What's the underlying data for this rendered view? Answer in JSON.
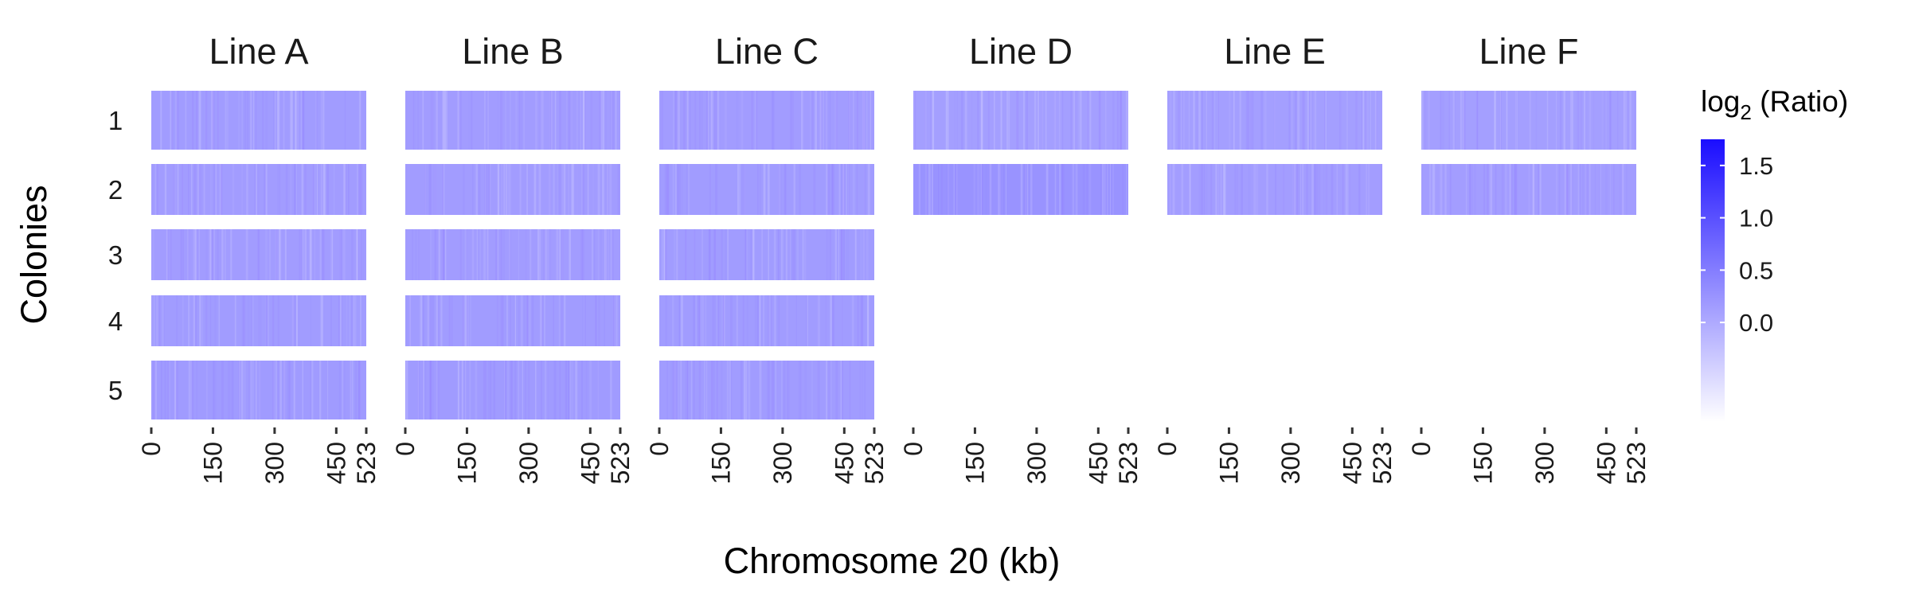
{
  "chart_data": {
    "type": "heatmap",
    "xlabel": "Chromosome 20 (kb)",
    "ylabel": "Colonies",
    "x_range": [
      0,
      523
    ],
    "x_ticks": [
      0,
      150,
      300,
      450,
      523
    ],
    "rows": [
      "1",
      "2",
      "3",
      "4",
      "5"
    ],
    "legend": {
      "title_base": "log",
      "title_sub": "2",
      "title_rest": " (Ratio)",
      "ticks": [
        1.5,
        1.0,
        0.5,
        0.0
      ],
      "tick_labels": [
        "1.5",
        "1.0",
        "0.5",
        "0.0"
      ],
      "range": [
        -0.95,
        1.75
      ],
      "color_low": "#ffffff",
      "color_high": "#1a0dff"
    },
    "facets": [
      {
        "name": "Line A",
        "colonies": [
          {
            "row": "1",
            "value": 0.16
          },
          {
            "row": "2",
            "value": 0.15
          },
          {
            "row": "3",
            "value": 0.15
          },
          {
            "row": "4",
            "value": 0.16
          },
          {
            "row": "5",
            "value": 0.17
          }
        ]
      },
      {
        "name": "Line B",
        "colonies": [
          {
            "row": "1",
            "value": 0.15
          },
          {
            "row": "2",
            "value": 0.15
          },
          {
            "row": "3",
            "value": 0.15
          },
          {
            "row": "4",
            "value": 0.16
          },
          {
            "row": "5",
            "value": 0.17
          }
        ]
      },
      {
        "name": "Line C",
        "colonies": [
          {
            "row": "1",
            "value": 0.15
          },
          {
            "row": "2",
            "value": 0.16
          },
          {
            "row": "3",
            "value": 0.16
          },
          {
            "row": "4",
            "value": 0.16
          },
          {
            "row": "5",
            "value": 0.16
          }
        ]
      },
      {
        "name": "Line D",
        "colonies": [
          {
            "row": "1",
            "value": 0.12
          },
          {
            "row": "2",
            "value": 0.25
          }
        ]
      },
      {
        "name": "Line E",
        "colonies": [
          {
            "row": "1",
            "value": 0.12
          },
          {
            "row": "2",
            "value": 0.14
          }
        ]
      },
      {
        "name": "Line F",
        "colonies": [
          {
            "row": "1",
            "value": 0.12
          },
          {
            "row": "2",
            "value": 0.14
          }
        ]
      }
    ]
  }
}
